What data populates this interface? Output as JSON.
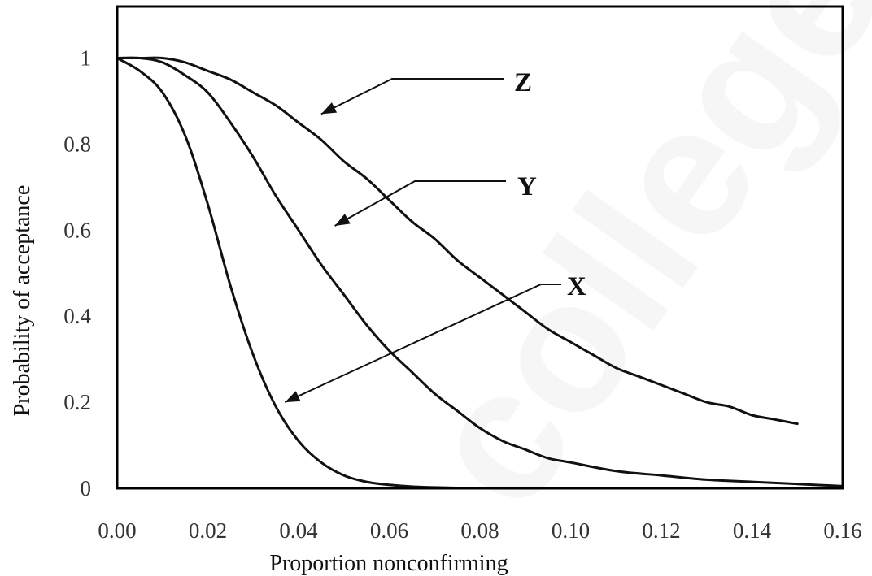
{
  "chart_data": {
    "type": "line",
    "title": "",
    "xlabel": "Proportion nonconfirming",
    "ylabel": "Probability of acceptance",
    "xlim": [
      0,
      0.16
    ],
    "ylim": [
      0,
      1.12
    ],
    "x_tick_labels": [
      "0.00",
      "0.02",
      "0.04",
      "0.06",
      "0.08",
      "0.10",
      "0.12",
      "0.14",
      "0.16"
    ],
    "y_tick_labels": [
      "0",
      "0.2",
      "0.4",
      "0.6",
      "0.8",
      "1"
    ],
    "grid": false,
    "legend": "none",
    "series": [
      {
        "name": "X",
        "x": [
          0,
          0.005,
          0.01,
          0.015,
          0.02,
          0.025,
          0.03,
          0.035,
          0.04,
          0.045,
          0.05,
          0.055,
          0.06,
          0.065,
          0.07,
          0.08,
          0.09,
          0.1,
          0.12,
          0.14,
          0.16
        ],
        "y": [
          1.0,
          0.97,
          0.92,
          0.82,
          0.66,
          0.47,
          0.31,
          0.19,
          0.11,
          0.06,
          0.03,
          0.015,
          0.008,
          0.004,
          0.002,
          0.0,
          0.0,
          0.0,
          0.0,
          0.0,
          0.0
        ]
      },
      {
        "name": "Y",
        "x": [
          0,
          0.005,
          0.01,
          0.015,
          0.02,
          0.025,
          0.03,
          0.035,
          0.04,
          0.045,
          0.05,
          0.055,
          0.06,
          0.065,
          0.07,
          0.075,
          0.08,
          0.085,
          0.09,
          0.095,
          0.1,
          0.11,
          0.12,
          0.13,
          0.14,
          0.15,
          0.16
        ],
        "y": [
          1.0,
          1.0,
          0.99,
          0.96,
          0.92,
          0.85,
          0.77,
          0.68,
          0.6,
          0.52,
          0.45,
          0.38,
          0.32,
          0.27,
          0.22,
          0.18,
          0.14,
          0.11,
          0.09,
          0.07,
          0.06,
          0.04,
          0.03,
          0.02,
          0.015,
          0.01,
          0.005
        ]
      },
      {
        "name": "Z",
        "x": [
          0,
          0.005,
          0.01,
          0.015,
          0.02,
          0.025,
          0.03,
          0.035,
          0.04,
          0.045,
          0.05,
          0.055,
          0.06,
          0.065,
          0.07,
          0.075,
          0.08,
          0.085,
          0.09,
          0.095,
          0.1,
          0.105,
          0.11,
          0.115,
          0.12,
          0.125,
          0.13,
          0.135,
          0.14,
          0.145,
          0.15
        ],
        "y": [
          1.0,
          1.0,
          1.0,
          0.99,
          0.97,
          0.95,
          0.92,
          0.89,
          0.85,
          0.81,
          0.76,
          0.72,
          0.67,
          0.62,
          0.58,
          0.53,
          0.49,
          0.45,
          0.41,
          0.37,
          0.34,
          0.31,
          0.28,
          0.26,
          0.24,
          0.22,
          0.2,
          0.19,
          0.17,
          0.16,
          0.15
        ]
      }
    ],
    "annotations": [
      {
        "text": "Z",
        "points_to_series": "Z",
        "points_to": [
          0.045,
          0.87
        ]
      },
      {
        "text": "Y",
        "points_to_series": "Y",
        "points_to": [
          0.048,
          0.61
        ]
      },
      {
        "text": "X",
        "points_to_series": "X",
        "points_to": [
          0.037,
          0.2
        ]
      }
    ],
    "watermark_text": "college"
  }
}
